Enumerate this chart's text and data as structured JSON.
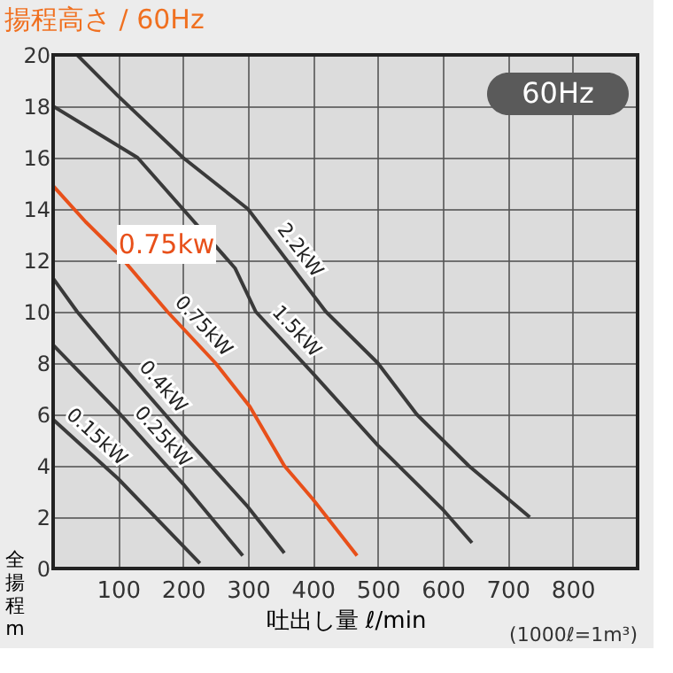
{
  "chart_data": {
    "type": "line",
    "title": "揚程高さ / 60Hz",
    "xlabel": "吐出し量 ℓ/min",
    "ylabel": "全揚程m",
    "xlim": [
      0,
      900
    ],
    "ylim": [
      0,
      20
    ],
    "xticks": [
      100,
      200,
      300,
      400,
      500,
      600,
      700,
      800
    ],
    "yticks": [
      0,
      2,
      4,
      6,
      8,
      10,
      12,
      14,
      16,
      18,
      20
    ],
    "grid": true,
    "line_style": "solid",
    "series": [
      {
        "name": "2.2kW",
        "color": "#3a3a3a",
        "x": [
          37,
          100,
          200,
          300,
          420,
          500,
          560,
          640,
          734
        ],
        "values": [
          20,
          18.4,
          16,
          14,
          10,
          8,
          6,
          4,
          2
        ]
      },
      {
        "name": "1.5kW",
        "color": "#3a3a3a",
        "x": [
          0,
          130,
          280,
          312,
          400,
          500,
          600,
          645
        ],
        "values": [
          18,
          16,
          11.7,
          10,
          7.6,
          4.8,
          2.3,
          1.0
        ]
      },
      {
        "name": "0.75kW",
        "color": "#e8501a",
        "x": [
          0,
          50,
          102,
          176,
          250,
          303,
          356,
          400,
          468
        ],
        "values": [
          14.9,
          13.5,
          12.2,
          10,
          8,
          6.3,
          4.0,
          2.7,
          0.5
        ]
      },
      {
        "name": "0.4kW",
        "color": "#3a3a3a",
        "x": [
          0,
          37,
          100,
          200,
          300,
          356
        ],
        "values": [
          11.3,
          10,
          8.1,
          5.2,
          2.4,
          0.6
        ]
      },
      {
        "name": "0.25kW",
        "color": "#3a3a3a",
        "x": [
          0,
          100,
          200,
          292
        ],
        "values": [
          8.7,
          6.1,
          3.3,
          0.5
        ]
      },
      {
        "name": "0.15kW",
        "color": "#3a3a3a",
        "x": [
          0,
          100,
          226
        ],
        "values": [
          5.8,
          3.5,
          0.2
        ]
      }
    ],
    "annotations": [
      "0.75kw",
      "60Hz",
      "(1000ℓ=1m³)"
    ]
  }
}
